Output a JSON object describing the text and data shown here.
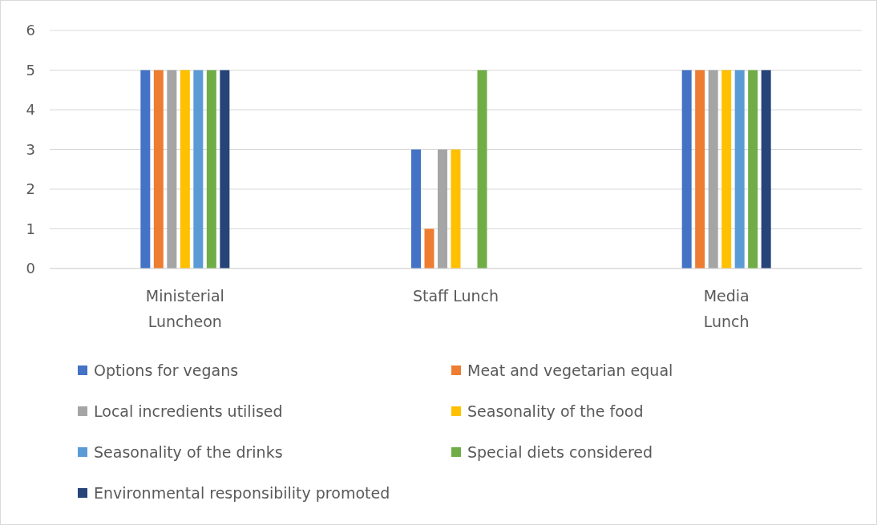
{
  "chart_data": {
    "type": "bar",
    "categories": [
      "Ministerial Luncheon",
      "Staff Lunch",
      "Media Lunch"
    ],
    "series": [
      {
        "name": "Options for vegans",
        "color": "#4472c4",
        "values": [
          5,
          3,
          5
        ]
      },
      {
        "name": "Meat and vegetarian equal",
        "color": "#ed7d31",
        "values": [
          5,
          1,
          5
        ]
      },
      {
        "name": "Local incredients utilised",
        "color": "#a5a5a5",
        "values": [
          5,
          3,
          5
        ]
      },
      {
        "name": "Seasonality of the food",
        "color": "#ffc000",
        "values": [
          5,
          3,
          5
        ]
      },
      {
        "name": "Seasonality of the drinks",
        "color": "#5b9bd5",
        "values": [
          5,
          0,
          5
        ]
      },
      {
        "name": "Special diets considered",
        "color": "#70ad47",
        "values": [
          5,
          5,
          5
        ]
      },
      {
        "name": "Environmental responsibility promoted",
        "color": "#264478",
        "values": [
          5,
          0,
          5
        ]
      }
    ],
    "ylim": [
      0,
      6
    ],
    "yticks": [
      0,
      1,
      2,
      3,
      4,
      5,
      6
    ],
    "grid": "y",
    "legend": "bottom"
  }
}
